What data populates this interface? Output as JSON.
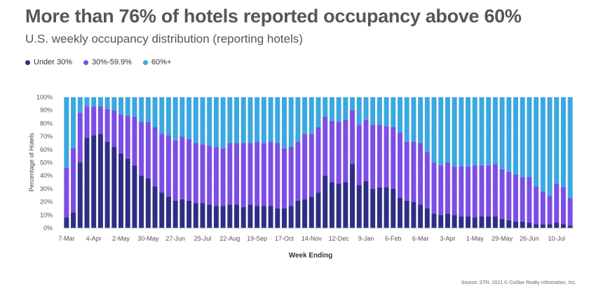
{
  "chart_data": {
    "type": "bar",
    "stacked": true,
    "title": "More than 76% of hotels reported occupancy above 60%",
    "subtitle": "U.S. weekly occupancy distribution (reporting hotels)",
    "ylabel": "Percentage of Hotels",
    "xlabel": "Week Ending",
    "ylim": [
      0,
      100
    ],
    "y_ticks": [
      "0%",
      "10%",
      "20%",
      "30%",
      "40%",
      "50%",
      "60%",
      "70%",
      "80%",
      "90%",
      "100%"
    ],
    "x_tick_labels": [
      "7-Mar",
      "4-Apr",
      "2-May",
      "30-May",
      "27-Jun",
      "25-Jul",
      "22-Aug",
      "19-Sep",
      "17-Oct",
      "14-Nov",
      "12-Dec",
      "9-Jan",
      "6-Feb",
      "6-Mar",
      "3-Apr",
      "1-May",
      "29-May",
      "26-Jun",
      "10-Jul"
    ],
    "x_tick_every": 4,
    "colors": {
      "under30": "#2e2f82",
      "mid": "#7c4ee6",
      "over60": "#3ba8e0"
    },
    "legend_placement": "top-left",
    "grid": true,
    "series": [
      {
        "name": "Under 30%",
        "values": [
          8,
          12,
          50,
          69,
          71,
          72,
          66,
          62,
          57,
          53,
          48,
          40,
          38,
          32,
          27,
          24,
          21,
          22,
          21,
          19,
          19,
          18,
          17,
          17,
          18,
          18,
          16,
          18,
          17,
          17,
          17,
          15,
          15,
          17,
          21,
          22,
          24,
          27,
          40,
          35,
          34,
          35,
          49,
          33,
          36,
          30,
          31,
          31,
          30,
          23,
          21,
          20,
          18,
          15,
          11,
          10,
          11,
          10,
          9,
          9,
          8,
          9,
          9,
          9,
          7,
          6,
          5,
          5,
          4,
          3,
          3,
          3,
          4,
          3,
          2
        ]
      },
      {
        "name": "30%-59.9%",
        "values": [
          38,
          49,
          38,
          24,
          22,
          21,
          25,
          28,
          30,
          33,
          37,
          41,
          43,
          45,
          45,
          47,
          46,
          48,
          47,
          46,
          45,
          45,
          45,
          44,
          47,
          47,
          49,
          47,
          49,
          48,
          49,
          50,
          46,
          45,
          45,
          50,
          48,
          50,
          45,
          47,
          47,
          48,
          41,
          46,
          47,
          49,
          48,
          47,
          47,
          50,
          45,
          46,
          47,
          43,
          39,
          38,
          39,
          37,
          38,
          38,
          40,
          39,
          39,
          40,
          38,
          37,
          36,
          34,
          35,
          29,
          25,
          22,
          30,
          28,
          21
        ]
      },
      {
        "name": "60%+",
        "values": [
          54,
          39,
          12,
          7,
          7,
          7,
          9,
          10,
          13,
          14,
          15,
          19,
          19,
          23,
          28,
          29,
          33,
          30,
          32,
          35,
          36,
          37,
          38,
          39,
          35,
          35,
          35,
          35,
          34,
          35,
          34,
          35,
          39,
          38,
          34,
          28,
          28,
          23,
          15,
          18,
          19,
          17,
          10,
          21,
          17,
          21,
          21,
          22,
          23,
          27,
          34,
          34,
          35,
          42,
          50,
          52,
          50,
          53,
          53,
          53,
          52,
          52,
          52,
          51,
          55,
          57,
          59,
          61,
          61,
          68,
          72,
          75,
          66,
          69,
          77
        ]
      }
    ]
  },
  "source": "Source: STR. 2021 © CoStar Realty Information, Inc."
}
